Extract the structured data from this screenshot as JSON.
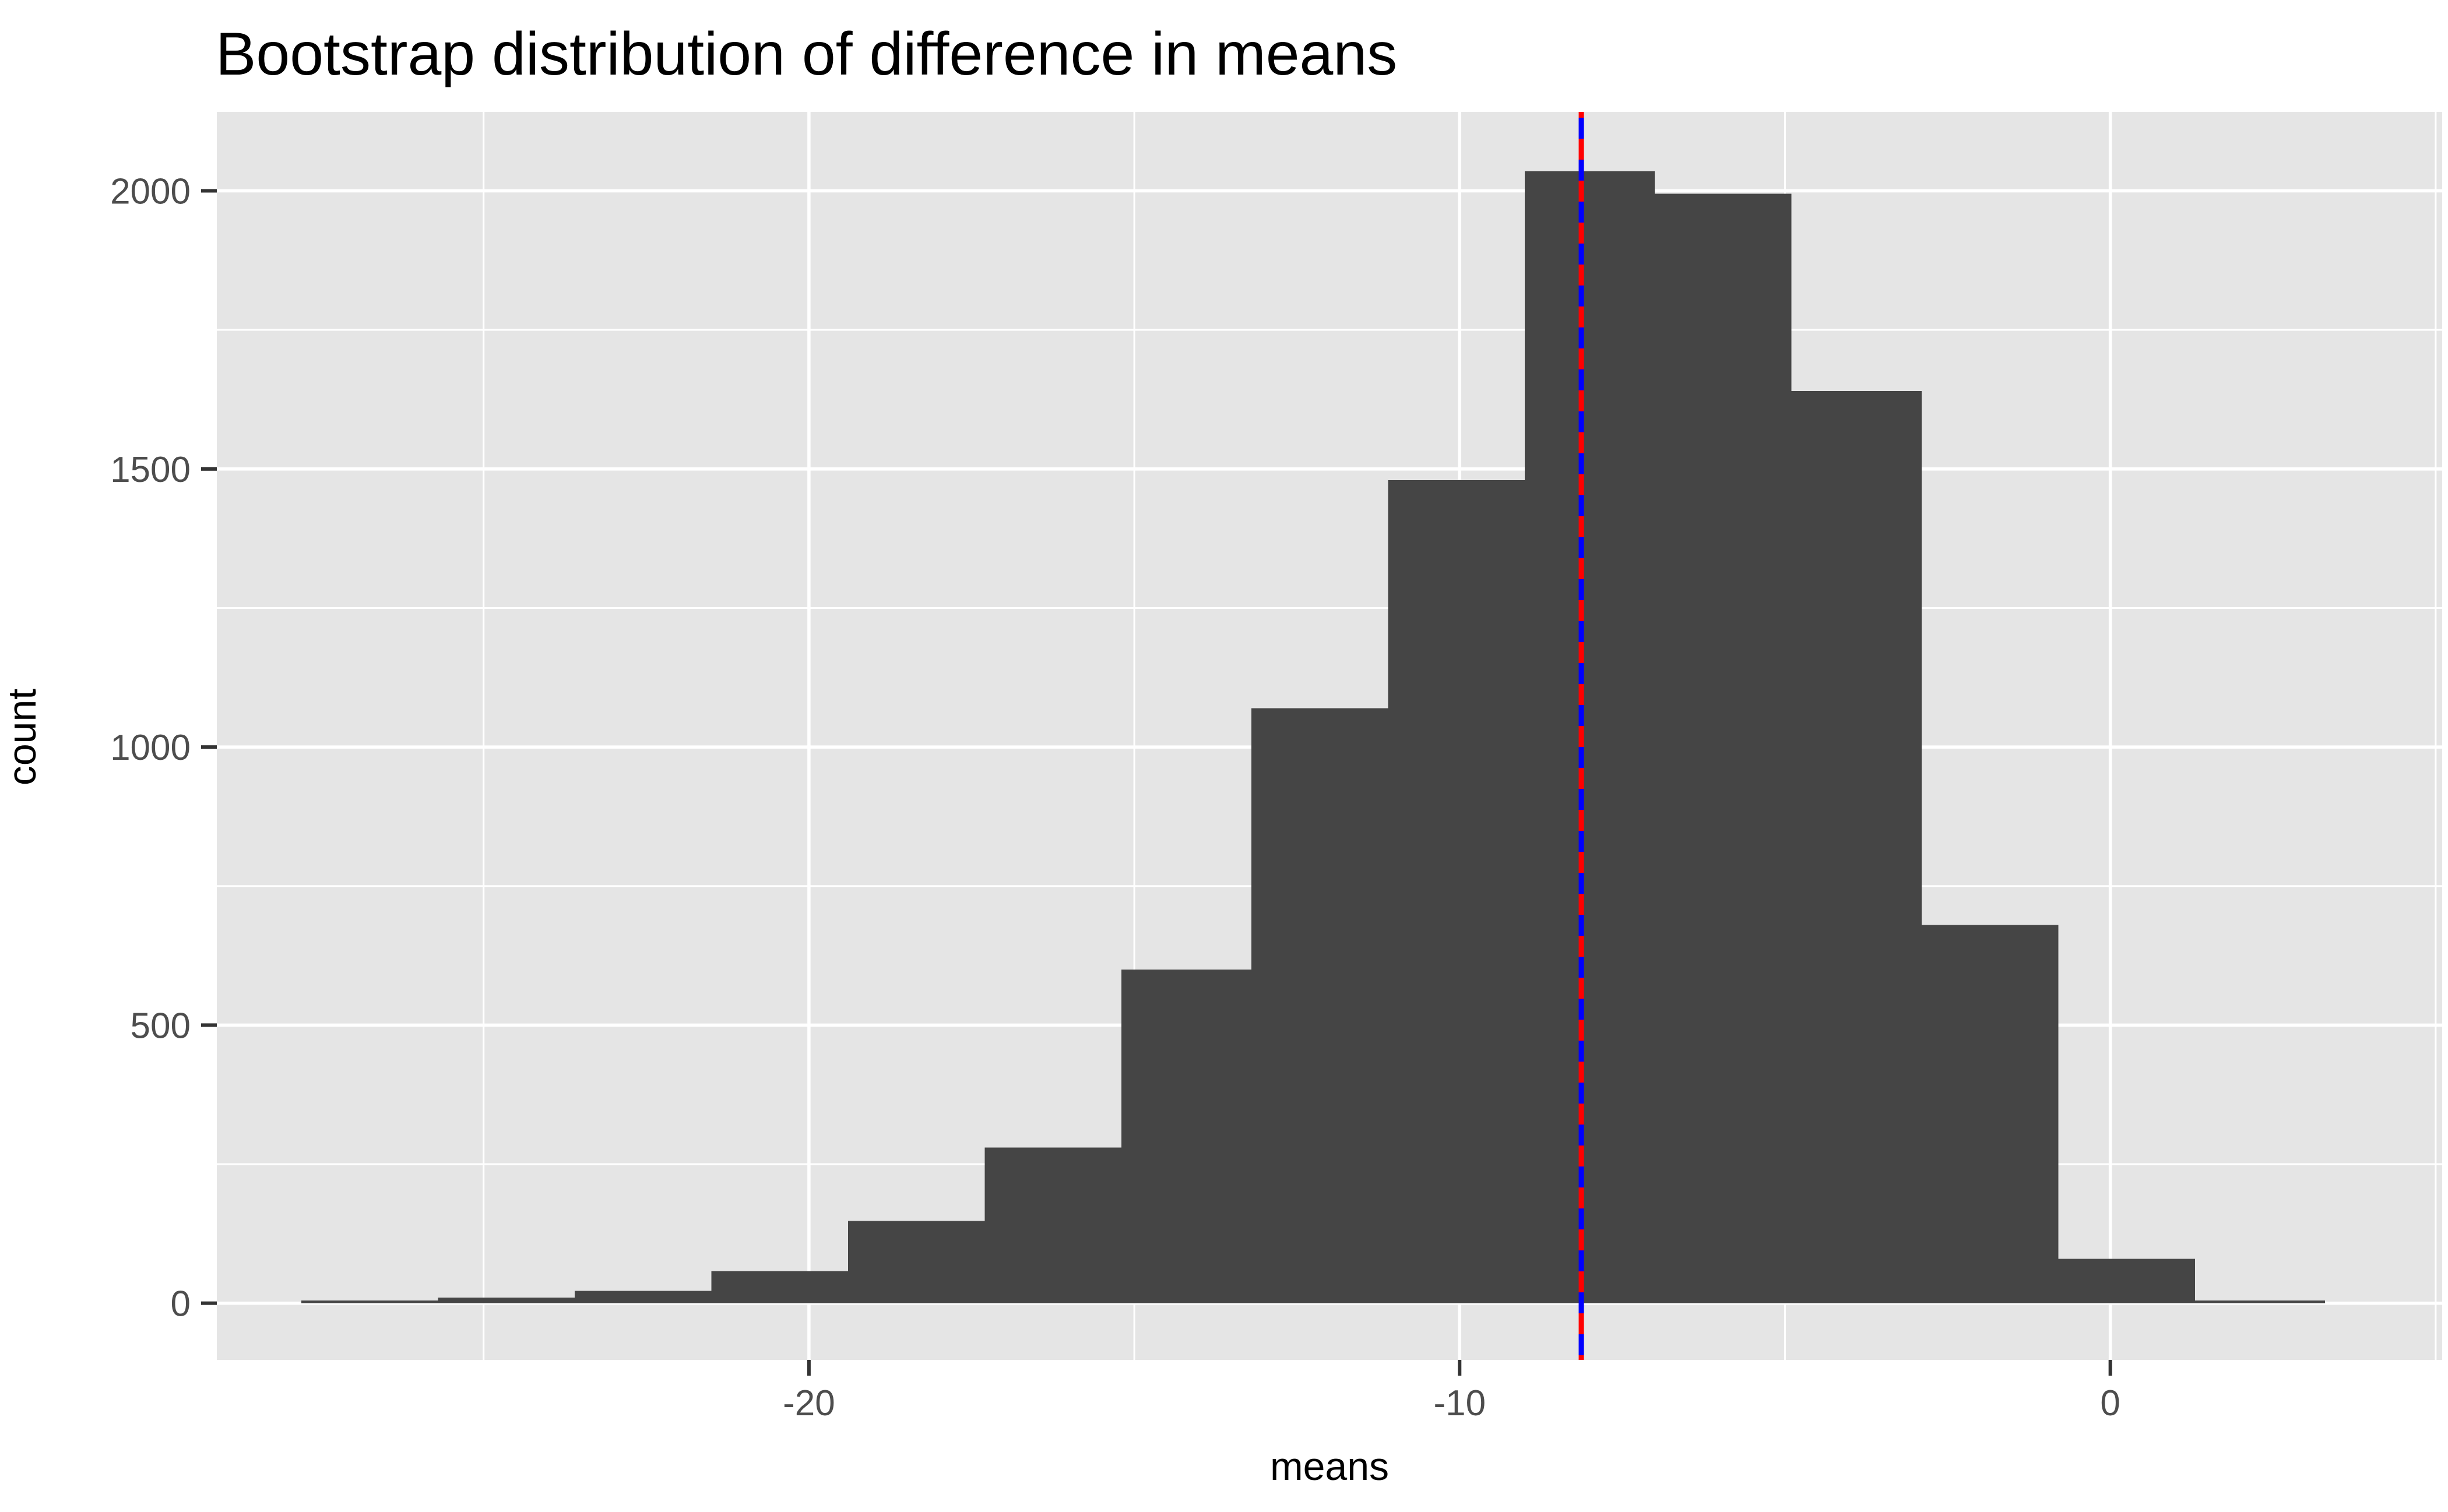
{
  "chart_data": {
    "type": "bar",
    "subtype": "histogram",
    "title": "Bootstrap distribution of difference in means",
    "xlabel": "means",
    "ylabel": "count",
    "x_ticks": [
      -20,
      -10,
      0
    ],
    "x_tick_labels": [
      "-20",
      "-10",
      "0"
    ],
    "x_minor_ticks": [
      -25,
      -15,
      -5,
      5
    ],
    "y_ticks": [
      0,
      500,
      1000,
      1500,
      2000
    ],
    "y_tick_labels": [
      "0",
      "500",
      "1000",
      "1500",
      "2000"
    ],
    "y_minor_ticks": [
      250,
      750,
      1250,
      1750
    ],
    "xlim": [
      -29.1,
      5.1
    ],
    "ylim": [
      -102,
      2142
    ],
    "grid": "on",
    "legend": "none",
    "bins": [
      {
        "x0": -27.8,
        "x1": -25.7,
        "count": 5
      },
      {
        "x0": -25.7,
        "x1": -23.6,
        "count": 10
      },
      {
        "x0": -23.6,
        "x1": -21.5,
        "count": 22
      },
      {
        "x0": -21.5,
        "x1": -19.4,
        "count": 58
      },
      {
        "x0": -19.4,
        "x1": -17.3,
        "count": 148
      },
      {
        "x0": -17.3,
        "x1": -15.2,
        "count": 280
      },
      {
        "x0": -15.2,
        "x1": -13.2,
        "count": 600
      },
      {
        "x0": -13.2,
        "x1": -11.1,
        "count": 1070
      },
      {
        "x0": -11.1,
        "x1": -9.0,
        "count": 1480
      },
      {
        "x0": -9.0,
        "x1": -7.0,
        "count": 2035
      },
      {
        "x0": -7.0,
        "x1": -4.9,
        "count": 1995
      },
      {
        "x0": -4.9,
        "x1": -2.9,
        "count": 1640
      },
      {
        "x0": -2.9,
        "x1": -0.8,
        "count": 680
      },
      {
        "x0": -0.8,
        "x1": 1.3,
        "count": 80
      },
      {
        "x0": 1.3,
        "x1": 3.3,
        "count": 5
      }
    ],
    "vline": {
      "x": -8.13,
      "solid_color": "#FF0000",
      "dashed_color": "#0000FF"
    },
    "colors": {
      "bar_fill": "#454545",
      "panel_bg": "#E5E5E5",
      "gridline": "#FFFFFF",
      "tick_mark": "#333333",
      "tick_label": "#4D4D4D",
      "title_text": "#000000"
    }
  }
}
